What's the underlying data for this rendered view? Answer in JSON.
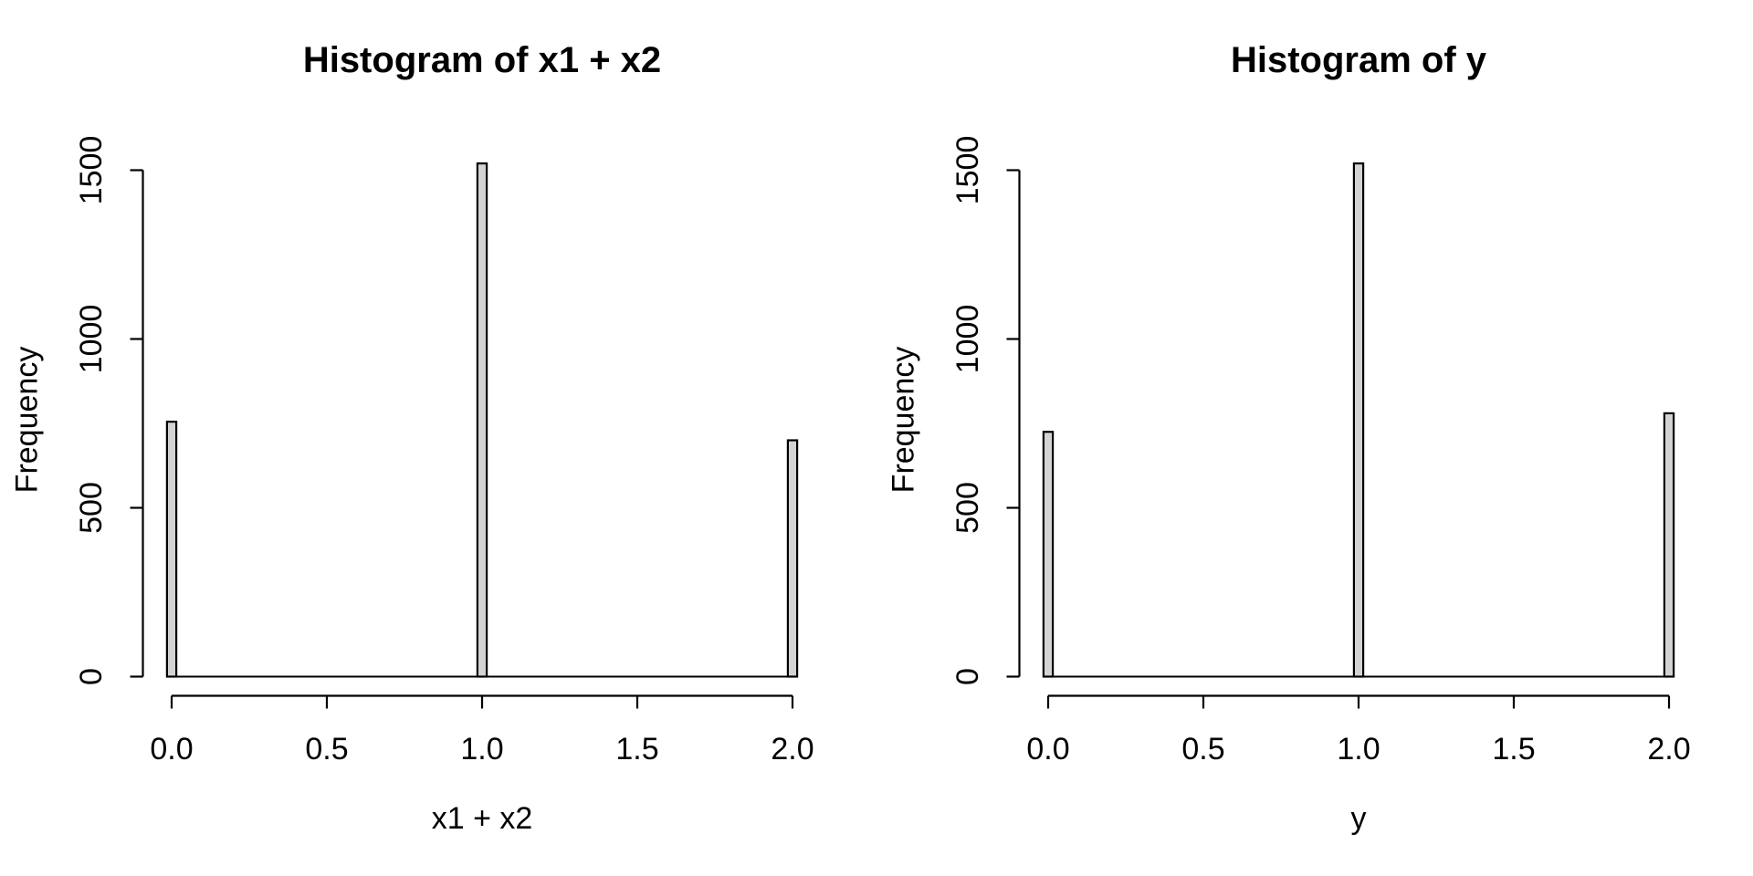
{
  "page": {
    "background": "#ffffff",
    "text_color": "#000000"
  },
  "chart_data": [
    {
      "type": "bar",
      "subtype": "histogram",
      "title": "Histogram of x1 + x2",
      "xlabel": "x1 + x2",
      "ylabel": "Frequency",
      "bin_centers": [
        0,
        1,
        2
      ],
      "counts": [
        755,
        1520,
        700
      ],
      "bin_width_data_units": 0.03,
      "x_ticks": [
        0,
        0.5,
        1,
        1.5,
        2
      ],
      "x_tick_labels": [
        "0.0",
        "0.5",
        "1.0",
        "1.5",
        "2.0"
      ],
      "y_ticks": [
        0,
        500,
        1000,
        1500
      ],
      "y_tick_labels": [
        "0",
        "500",
        "1000",
        "1500"
      ],
      "xlim": [
        0,
        2
      ],
      "ylim": [
        0,
        1530
      ],
      "grid": false,
      "legend": "none",
      "bar_fill": "#d3d3d3",
      "bar_stroke": "#000000",
      "axis_color": "#000000"
    },
    {
      "type": "bar",
      "subtype": "histogram",
      "title": "Histogram of y",
      "xlabel": "y",
      "ylabel": "Frequency",
      "bin_centers": [
        0,
        1,
        2
      ],
      "counts": [
        725,
        1520,
        780
      ],
      "bin_width_data_units": 0.03,
      "x_ticks": [
        0,
        0.5,
        1,
        1.5,
        2
      ],
      "x_tick_labels": [
        "0.0",
        "0.5",
        "1.0",
        "1.5",
        "2.0"
      ],
      "y_ticks": [
        0,
        500,
        1000,
        1500
      ],
      "y_tick_labels": [
        "0",
        "500",
        "1000",
        "1500"
      ],
      "xlim": [
        0,
        2
      ],
      "ylim": [
        0,
        1530
      ],
      "grid": false,
      "legend": "none",
      "bar_fill": "#d3d3d3",
      "bar_stroke": "#000000",
      "axis_color": "#000000"
    }
  ]
}
